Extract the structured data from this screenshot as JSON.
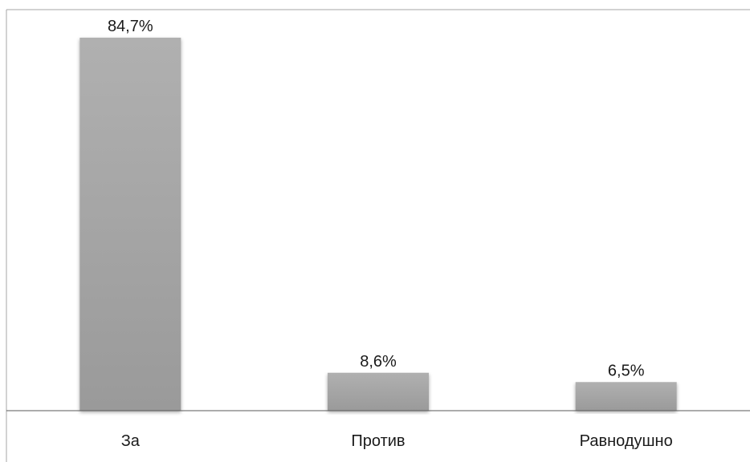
{
  "chart_data": {
    "type": "bar",
    "title": "",
    "xlabel": "",
    "ylabel": "",
    "categories": [
      "За",
      "Против",
      "Равнодушно"
    ],
    "values": [
      84.7,
      8.6,
      6.5
    ],
    "data_labels": [
      "84,7%",
      "8,6%",
      "6,5%"
    ],
    "ylim": [
      0,
      100
    ],
    "grid": false,
    "legend": "none",
    "bar_color": "#a6a6a6",
    "bar_shadow_color": "#d9d9d9",
    "frame_color": "#a6a6a6",
    "axis_color": "#595959",
    "text_color": "#1a1a1a"
  }
}
